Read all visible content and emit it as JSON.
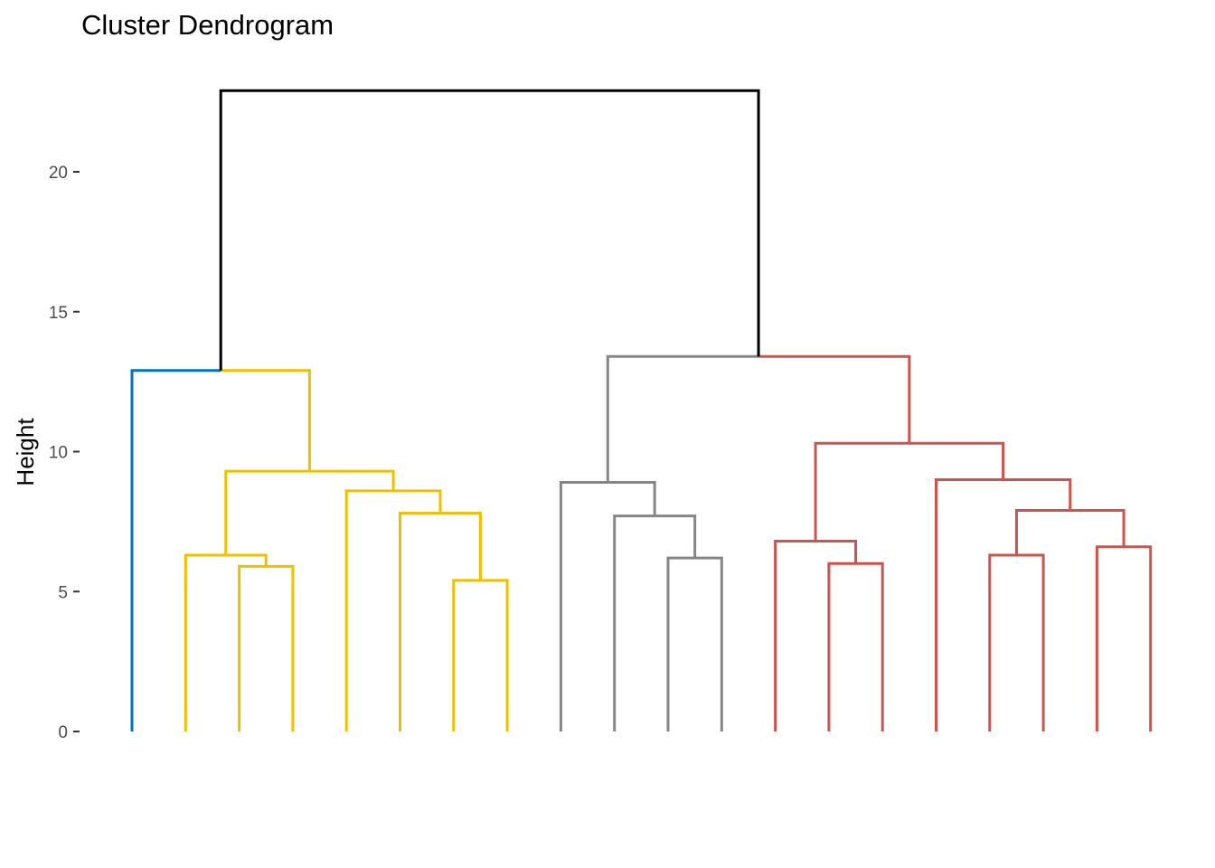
{
  "chart_data": {
    "type": "dendrogram",
    "title": "Cluster Dendrogram",
    "ylabel": "Height",
    "xlabel": "",
    "ylim": [
      0,
      23
    ],
    "yticks": [
      0,
      5,
      10,
      15,
      20
    ],
    "grid": false,
    "leaf_count": 20,
    "cluster_colors": {
      "c1": "#0073C2",
      "c2": "#EFC000",
      "c3": "#868686",
      "c4": "#CD534C",
      "root": "#000000"
    },
    "merges": [
      {
        "left": [
          "leaf",
          2
        ],
        "right": [
          "leaf",
          3
        ],
        "height": 5.9,
        "color": "c2"
      },
      {
        "left": [
          "leaf",
          1
        ],
        "right": [
          "merge",
          0
        ],
        "height": 6.3,
        "color": "c2"
      },
      {
        "left": [
          "leaf",
          6
        ],
        "right": [
          "leaf",
          7
        ],
        "height": 5.4,
        "color": "c2"
      },
      {
        "left": [
          "leaf",
          5
        ],
        "right": [
          "merge",
          2
        ],
        "height": 7.8,
        "color": "c2"
      },
      {
        "left": [
          "leaf",
          4
        ],
        "right": [
          "merge",
          3
        ],
        "height": 8.6,
        "color": "c2"
      },
      {
        "left": [
          "merge",
          1
        ],
        "right": [
          "merge",
          4
        ],
        "height": 9.3,
        "color": "c2"
      },
      {
        "left": [
          "leaf",
          10
        ],
        "right": [
          "leaf",
          11
        ],
        "height": 6.2,
        "color": "c3"
      },
      {
        "left": [
          "leaf",
          9
        ],
        "right": [
          "merge",
          6
        ],
        "height": 7.7,
        "color": "c3"
      },
      {
        "left": [
          "leaf",
          8
        ],
        "right": [
          "merge",
          7
        ],
        "height": 8.9,
        "color": "c3"
      },
      {
        "left": [
          "leaf",
          13
        ],
        "right": [
          "leaf",
          14
        ],
        "height": 6.0,
        "color": "c4"
      },
      {
        "left": [
          "leaf",
          12
        ],
        "right": [
          "merge",
          9
        ],
        "height": 6.8,
        "color": "c4"
      },
      {
        "left": [
          "leaf",
          16
        ],
        "right": [
          "leaf",
          17
        ],
        "height": 6.3,
        "color": "c4"
      },
      {
        "left": [
          "leaf",
          18
        ],
        "right": [
          "leaf",
          19
        ],
        "height": 6.6,
        "color": "c4"
      },
      {
        "left": [
          "merge",
          11
        ],
        "right": [
          "merge",
          12
        ],
        "height": 7.9,
        "color": "c4"
      },
      {
        "left": [
          "leaf",
          15
        ],
        "right": [
          "merge",
          13
        ],
        "height": 9.0,
        "color": "c4"
      },
      {
        "left": [
          "merge",
          10
        ],
        "right": [
          "merge",
          14
        ],
        "height": 10.3,
        "color": "c4"
      },
      {
        "left": [
          "merge",
          5
        ],
        "right": [
          "leaf",
          0
        ],
        "height": 12.9,
        "color": "split",
        "left_color": "c2",
        "right_color": "c1",
        "swap_sides": true
      },
      {
        "left": [
          "merge",
          8
        ],
        "right": [
          "merge",
          15
        ],
        "height": 13.4,
        "color": "split",
        "left_color": "c3",
        "right_color": "c4"
      },
      {
        "left": [
          "merge",
          16
        ],
        "right": [
          "merge",
          17
        ],
        "height": 22.9,
        "color": "root"
      }
    ],
    "leaf_colors": [
      "c1",
      "c2",
      "c2",
      "c2",
      "c2",
      "c2",
      "c2",
      "c2",
      "c3",
      "c3",
      "c3",
      "c3",
      "c4",
      "c4",
      "c4",
      "c4",
      "c4",
      "c4",
      "c4",
      "c4"
    ]
  }
}
